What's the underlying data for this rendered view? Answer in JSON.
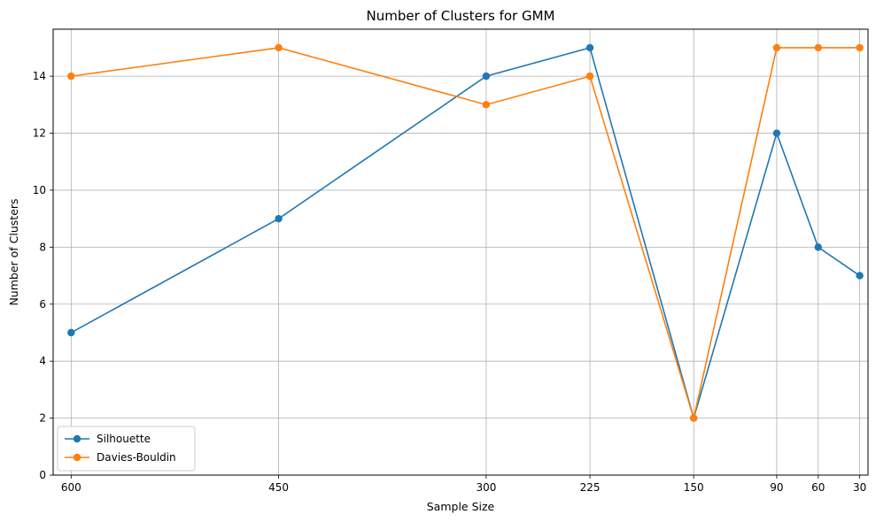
{
  "chart_data": {
    "type": "line",
    "title": "Number of Clusters for GMM",
    "xlabel": "Sample Size",
    "ylabel": "Number of Clusters",
    "x": [
      600,
      450,
      300,
      225,
      150,
      90,
      60,
      30
    ],
    "x_tick_labels": [
      "600",
      "450",
      "300",
      "225",
      "150",
      "90",
      "60",
      "30"
    ],
    "x_axis_inverted": true,
    "xlim": [
      613,
      24
    ],
    "ylim": [
      0,
      15.65
    ],
    "y_ticks": [
      0,
      2,
      4,
      6,
      8,
      10,
      12,
      14
    ],
    "y_tick_labels": [
      "0",
      "2",
      "4",
      "6",
      "8",
      "10",
      "12",
      "14"
    ],
    "grid": true,
    "legend_position": "lower-left",
    "series": [
      {
        "name": "Silhouette",
        "color": "#1f77b4",
        "marker": "circle",
        "values": [
          5,
          9,
          14,
          15,
          2,
          12,
          8,
          7
        ]
      },
      {
        "name": "Davies-Bouldin",
        "color": "#ff7f0e",
        "marker": "circle",
        "values": [
          14,
          15,
          13,
          14,
          2,
          15,
          15,
          15
        ]
      }
    ]
  }
}
